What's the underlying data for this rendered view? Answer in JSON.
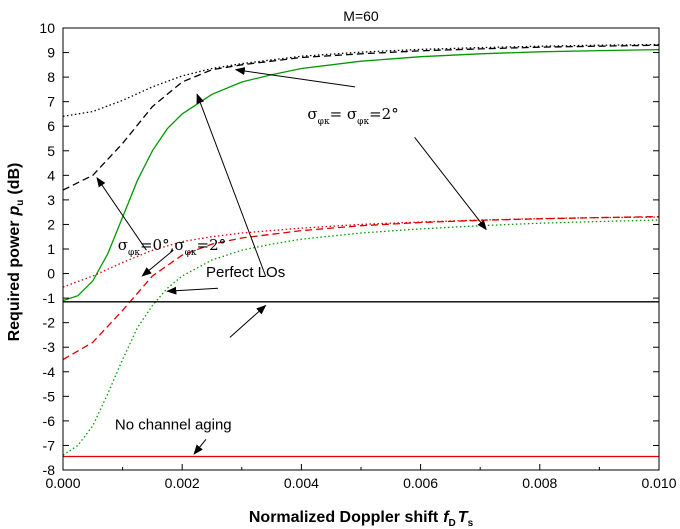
{
  "chart_data": {
    "type": "line",
    "title": "M=60",
    "xlabel": "Normalized Doppler shift",
    "xlabel_var": "f",
    "xlabel_sub1": "D",
    "xlabel_var2": "T",
    "xlabel_sub2": "s",
    "ylabel": "Required power",
    "ylabel_var": "p",
    "ylabel_sub": "u",
    "ylabel_unit": "(dB)",
    "xlim": [
      0.0,
      0.01
    ],
    "ylim": [
      -8,
      10
    ],
    "x_ticks": [
      "0.000",
      "0.002",
      "0.004",
      "0.006",
      "0.008",
      "0.010"
    ],
    "x_tick_values": [
      0.0,
      0.002,
      0.004,
      0.006,
      0.008,
      0.01
    ],
    "y_ticks": [
      "-8",
      "-7",
      "-6",
      "-5",
      "-4",
      "-3",
      "-2",
      "-1",
      "0",
      "1",
      "2",
      "3",
      "4",
      "5",
      "6",
      "7",
      "8",
      "9",
      "10"
    ],
    "y_tick_values": [
      -8,
      -7,
      -6,
      -5,
      -4,
      -3,
      -2,
      -1,
      0,
      1,
      2,
      3,
      4,
      5,
      6,
      7,
      8,
      9,
      10
    ],
    "grid": false,
    "series": [
      {
        "color": "#000000",
        "dash": "dotted",
        "x": [
          0,
          0.0005,
          0.001,
          0.0015,
          0.002,
          0.0025,
          0.003,
          0.004,
          0.005,
          0.006,
          0.007,
          0.008,
          0.009,
          0.01
        ],
        "values": [
          6.4,
          6.6,
          7.05,
          7.6,
          8.05,
          8.35,
          8.55,
          8.85,
          9.02,
          9.13,
          9.2,
          9.26,
          9.3,
          9.33
        ]
      },
      {
        "color": "#000000",
        "dash": "dashed",
        "x": [
          0,
          0.0005,
          0.001,
          0.0015,
          0.002,
          0.0025,
          0.003,
          0.004,
          0.005,
          0.006,
          0.007,
          0.008,
          0.009,
          0.01
        ],
        "values": [
          3.4,
          4.0,
          5.3,
          6.8,
          7.8,
          8.3,
          8.5,
          8.8,
          8.95,
          9.07,
          9.15,
          9.22,
          9.26,
          9.3
        ]
      },
      {
        "color": "#009900",
        "dash": "solid",
        "x": [
          0,
          0.00025,
          0.0005,
          0.00075,
          0.001,
          0.00125,
          0.0015,
          0.00175,
          0.002,
          0.0025,
          0.003,
          0.0035,
          0.004,
          0.005,
          0.006,
          0.007,
          0.008,
          0.009,
          0.01
        ],
        "values": [
          -1.1,
          -0.9,
          -0.3,
          0.8,
          2.3,
          3.8,
          5.0,
          5.9,
          6.5,
          7.3,
          7.8,
          8.1,
          8.35,
          8.65,
          8.83,
          8.95,
          9.03,
          9.08,
          9.12
        ]
      },
      {
        "color": "#dd0000",
        "dash": "dotted",
        "x": [
          0,
          0.0005,
          0.001,
          0.0015,
          0.002,
          0.0025,
          0.003,
          0.004,
          0.005,
          0.006,
          0.007,
          0.008,
          0.009,
          0.01
        ],
        "values": [
          -0.55,
          -0.1,
          0.45,
          0.95,
          1.3,
          1.5,
          1.65,
          1.85,
          2.0,
          2.1,
          2.18,
          2.24,
          2.28,
          2.3
        ]
      },
      {
        "color": "#dd0000",
        "dash": "dashed",
        "x": [
          0,
          0.0005,
          0.001,
          0.0015,
          0.002,
          0.0025,
          0.003,
          0.004,
          0.005,
          0.006,
          0.007,
          0.008,
          0.009,
          0.01
        ],
        "values": [
          -3.5,
          -2.8,
          -1.5,
          -0.1,
          0.75,
          1.2,
          1.45,
          1.75,
          1.95,
          2.08,
          2.17,
          2.23,
          2.28,
          2.32
        ]
      },
      {
        "color": "#009900",
        "dash": "dotted",
        "x": [
          0,
          0.00025,
          0.0005,
          0.00075,
          0.001,
          0.00125,
          0.0015,
          0.00175,
          0.002,
          0.0025,
          0.003,
          0.0035,
          0.004,
          0.005,
          0.006,
          0.007,
          0.008,
          0.009,
          0.01
        ],
        "values": [
          -7.4,
          -7.0,
          -6.2,
          -4.9,
          -3.5,
          -2.2,
          -1.3,
          -0.6,
          -0.1,
          0.55,
          0.95,
          1.2,
          1.4,
          1.65,
          1.82,
          1.95,
          2.05,
          2.12,
          2.18
        ]
      },
      {
        "color": "#000000",
        "dash": "solid",
        "x": [
          0,
          0.01
        ],
        "values": [
          -1.15,
          -1.15
        ]
      },
      {
        "color": "#dd0000",
        "dash": "solid",
        "x": [
          0,
          0.01
        ],
        "values": [
          -7.45,
          -7.45
        ]
      }
    ],
    "annotations": {
      "sigma_equal": {
        "sym1": "σ",
        "sub1": "φκ",
        "eq": "= σ",
        "sub2": "φκ",
        "val": "=2°",
        "x": 0.0041,
        "y": 6.3
      },
      "sigma_zero": {
        "sym1": "σ",
        "sub1": "φκ",
        "val1": "=0°,σ",
        "sub2": "φκ",
        "val2": "=2°",
        "x": 0.00092,
        "y": 0.95
      },
      "perfect_los": {
        "text": "Perfect LOs",
        "x": 0.0024,
        "y": -0.15
      },
      "no_aging": {
        "text": "No channel aging",
        "x": 0.00087,
        "y": -6.35
      }
    },
    "arrows": [
      {
        "from": [
          0.0049,
          7.6
        ],
        "to": [
          0.0029,
          8.3
        ]
      },
      {
        "from": [
          0.0059,
          5.55
        ],
        "to": [
          0.0071,
          1.8
        ]
      },
      {
        "from": [
          0.0014,
          0.95
        ],
        "to": [
          0.00057,
          3.9
        ]
      },
      {
        "from": [
          0.00185,
          0.95
        ],
        "to": [
          0.00133,
          -0.1
        ]
      },
      {
        "from": [
          0.0034,
          -0.1
        ],
        "to": [
          0.00225,
          7.3
        ]
      },
      {
        "from": [
          0.0026,
          -0.6
        ],
        "to": [
          0.00175,
          -0.72
        ]
      },
      {
        "from": [
          0.0028,
          -2.6
        ],
        "to": [
          0.0034,
          -1.3
        ]
      },
      {
        "from": [
          0.0024,
          -6.75
        ],
        "to": [
          0.0022,
          -7.35
        ]
      }
    ]
  }
}
